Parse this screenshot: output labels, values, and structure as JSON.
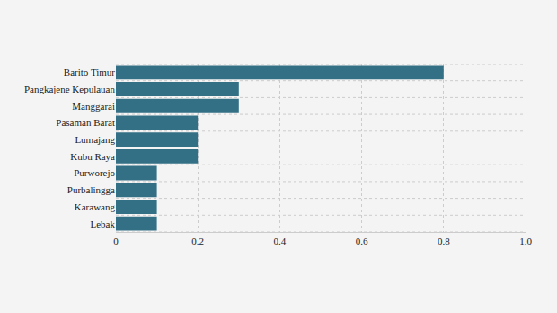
{
  "chart_data": {
    "type": "bar",
    "orientation": "horizontal",
    "categories": [
      "Barito Timur",
      "Pangkajene Kepulauan",
      "Manggarai",
      "Pasaman Barat",
      "Lumajang",
      "Kubu Raya",
      "Purworejo",
      "Purbalingga",
      "Karawang",
      "Lebak"
    ],
    "values": [
      0.8,
      0.3,
      0.3,
      0.2,
      0.2,
      0.2,
      0.1,
      0.1,
      0.1,
      0.1
    ],
    "color": "#336f85",
    "xlim": [
      0,
      1
    ],
    "xticks": [
      0,
      0.2,
      0.4,
      0.6,
      0.8,
      {
        "value": 1,
        "label": "1.0"
      }
    ],
    "grid": true
  }
}
